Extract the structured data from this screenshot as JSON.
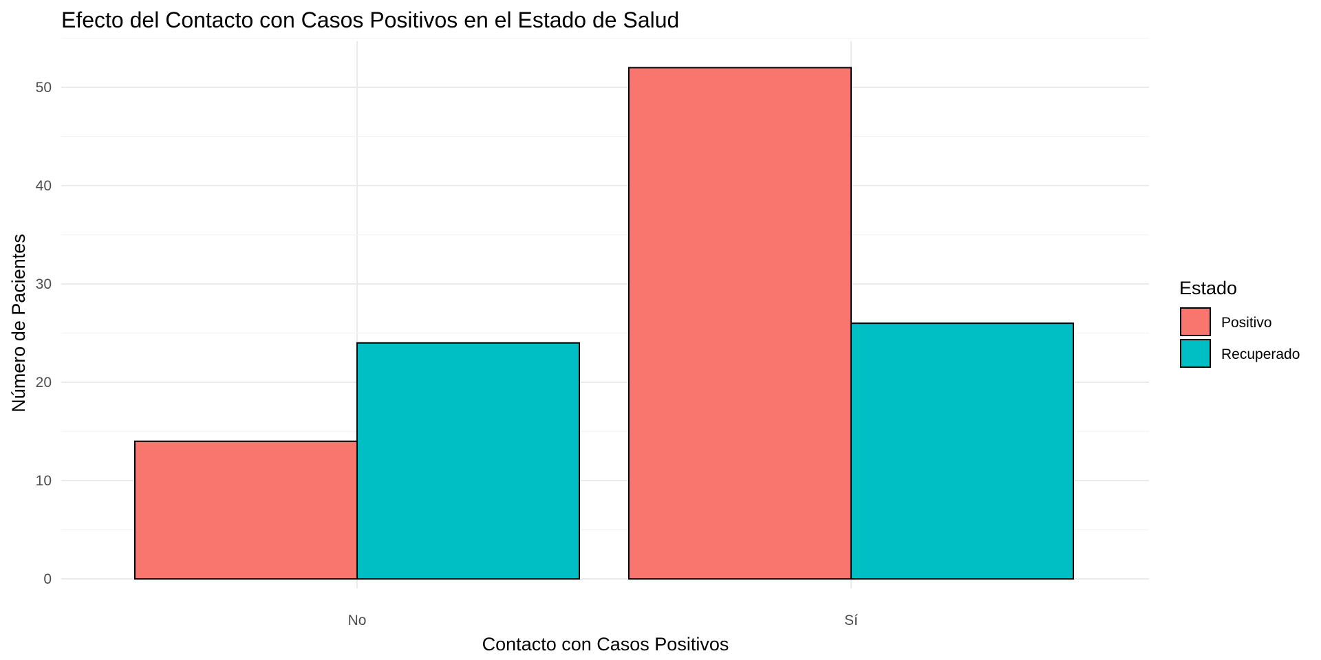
{
  "chart_data": {
    "type": "bar",
    "title": "Efecto del Contacto con Casos Positivos en el Estado de Salud",
    "xlabel": "Contacto con Casos Positivos",
    "ylabel": "Número de Pacientes",
    "categories": [
      "No",
      "Sí"
    ],
    "series": [
      {
        "name": "Positivo",
        "color": "#F8766D",
        "values": [
          14,
          52
        ]
      },
      {
        "name": "Recuperado",
        "color": "#00BFC4",
        "values": [
          24,
          26
        ]
      }
    ],
    "ylim": [
      0,
      55
    ],
    "yticks": [
      0,
      10,
      20,
      30,
      40,
      50
    ],
    "grid": true,
    "legend": {
      "title": "Estado",
      "position": "right",
      "items": [
        "Positivo",
        "Recuperado"
      ]
    }
  }
}
